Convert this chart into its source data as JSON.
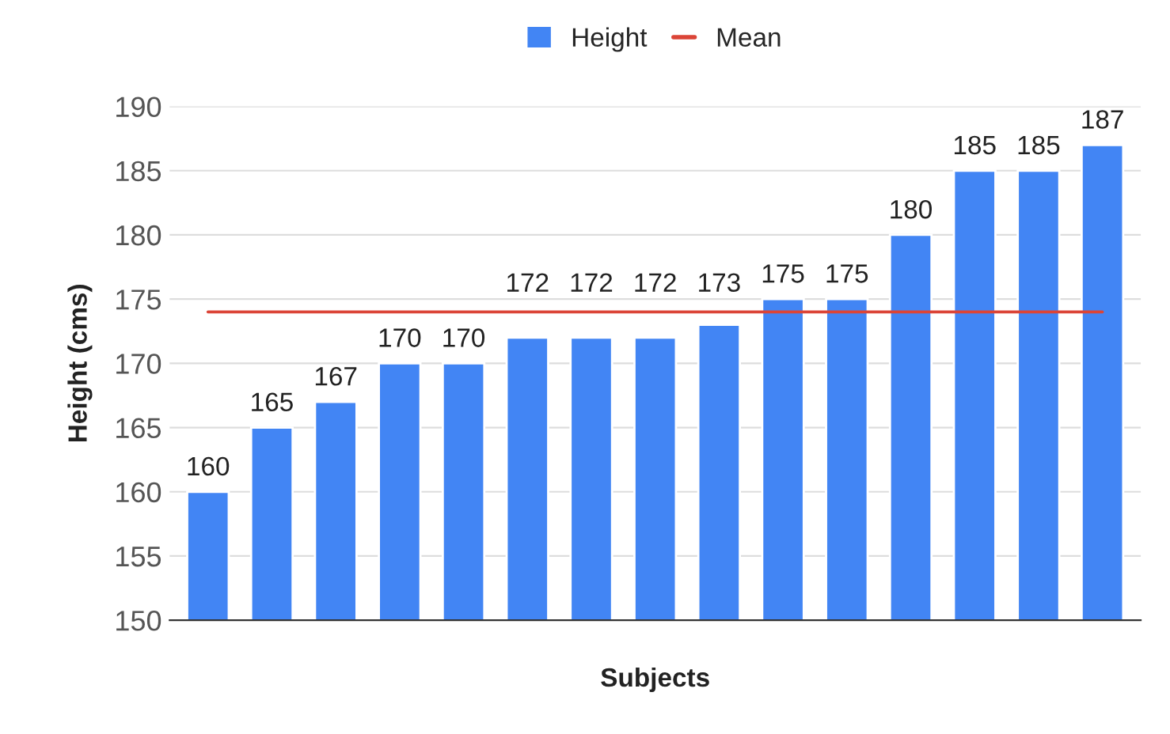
{
  "chart_data": {
    "type": "bar",
    "xlabel": "Subjects",
    "ylabel": "Height (cms)",
    "categories": [
      null,
      null,
      null,
      null,
      null,
      null,
      null,
      null,
      null,
      null,
      null,
      null,
      null,
      null,
      null
    ],
    "series": [
      {
        "name": "Height",
        "color": "#4285f4",
        "values": [
          160,
          165,
          167,
          170,
          170,
          172,
          172,
          172,
          173,
          175,
          175,
          180,
          185,
          185,
          187
        ],
        "value_labels": [
          "160",
          "165",
          "167",
          "170",
          "170",
          "172",
          "172",
          "172",
          "173",
          "175",
          "175",
          "180",
          "185",
          "185",
          "187"
        ]
      },
      {
        "name": "Mean",
        "type": "line",
        "color": "#db4437",
        "values": [
          174,
          174,
          174,
          174,
          174,
          174,
          174,
          174,
          174,
          174,
          174,
          174,
          174,
          174,
          174
        ]
      }
    ],
    "ylim": [
      150,
      190
    ],
    "yticks": [
      150,
      155,
      160,
      165,
      170,
      175,
      180,
      185,
      190
    ],
    "grid": "y",
    "legend": "top",
    "marker": "none"
  }
}
